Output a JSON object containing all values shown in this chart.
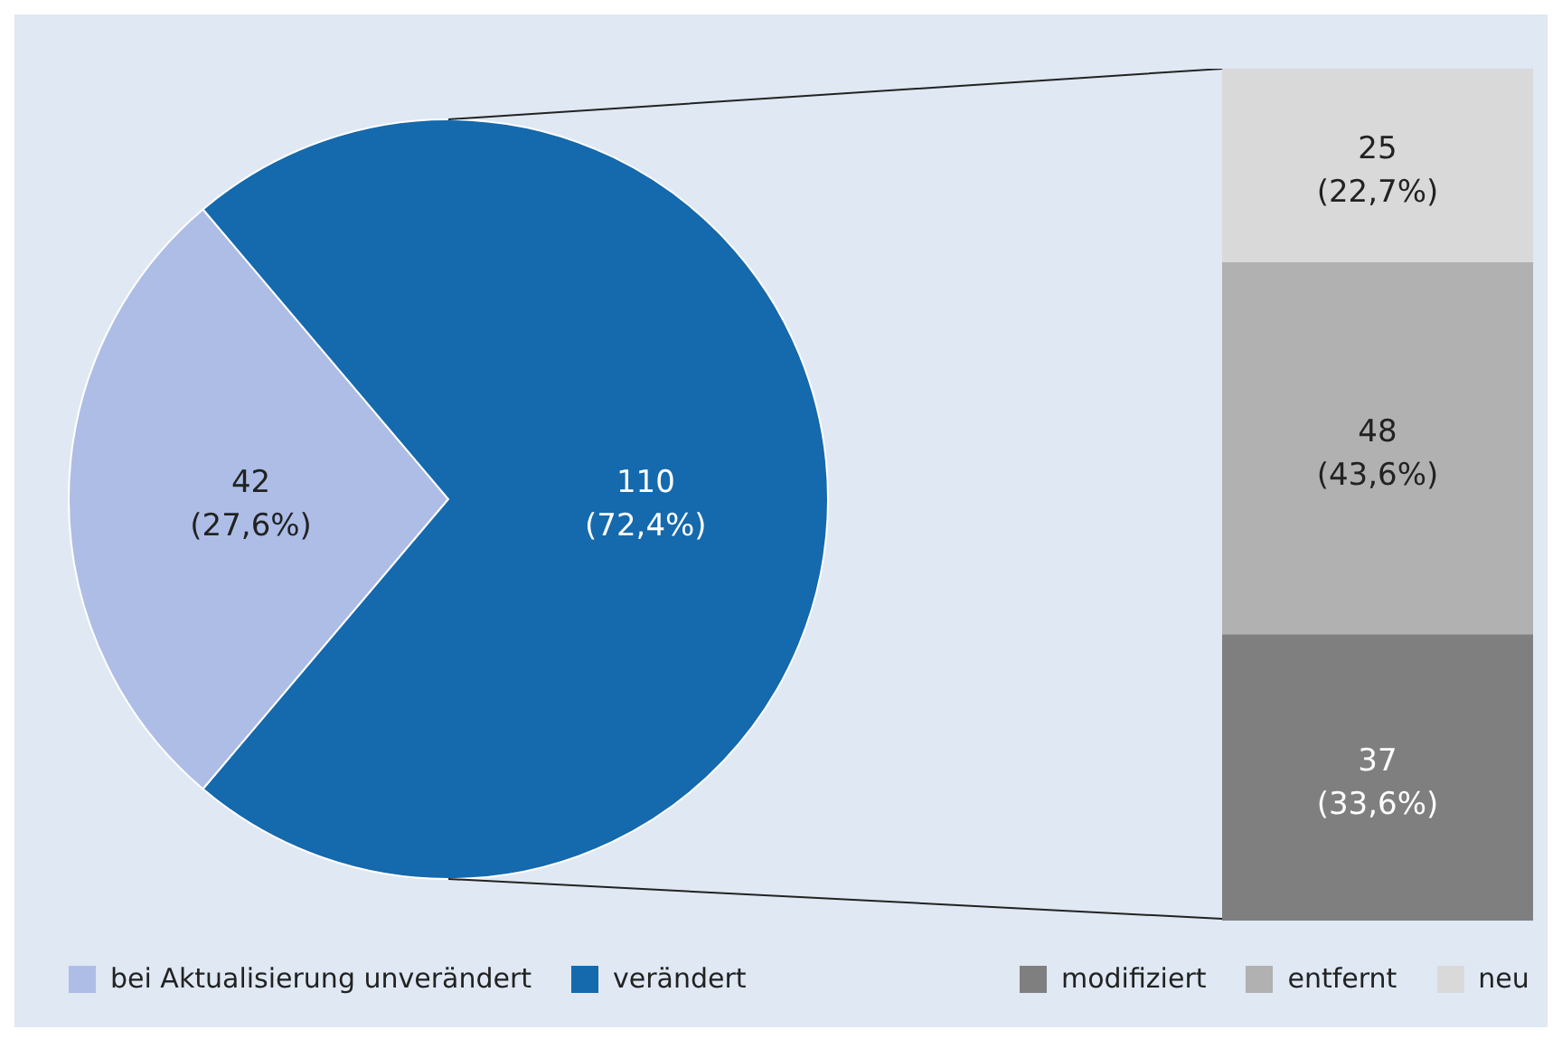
{
  "chart_data": [
    {
      "type": "pie",
      "categories": [
        "bei Aktualisierung unverändert",
        "verändert"
      ],
      "values": [
        42,
        110
      ],
      "colors": [
        "#adbde6",
        "#1569ad"
      ],
      "value_labels": [
        "42 (27,6%)",
        "110 (72,4%)"
      ],
      "legend": "bottom left"
    },
    {
      "type": "bar",
      "stacked": true,
      "categories": [
        null
      ],
      "tick_labels": false,
      "legend": "bottom left",
      "series": [
        {
          "name": "modifiziert",
          "color": "#7f7f7f",
          "values": [
            37
          ],
          "value_labels": [
            "37 (33,6%)"
          ]
        },
        {
          "name": "entfernt",
          "color": "#b1b1b1",
          "values": [
            48
          ],
          "value_labels": [
            "48 (43,6%)"
          ]
        },
        {
          "name": "neu",
          "color": "#d9d9d9",
          "values": [
            25
          ],
          "value_labels": [
            "25 (22,7%)"
          ]
        }
      ]
    }
  ]
}
